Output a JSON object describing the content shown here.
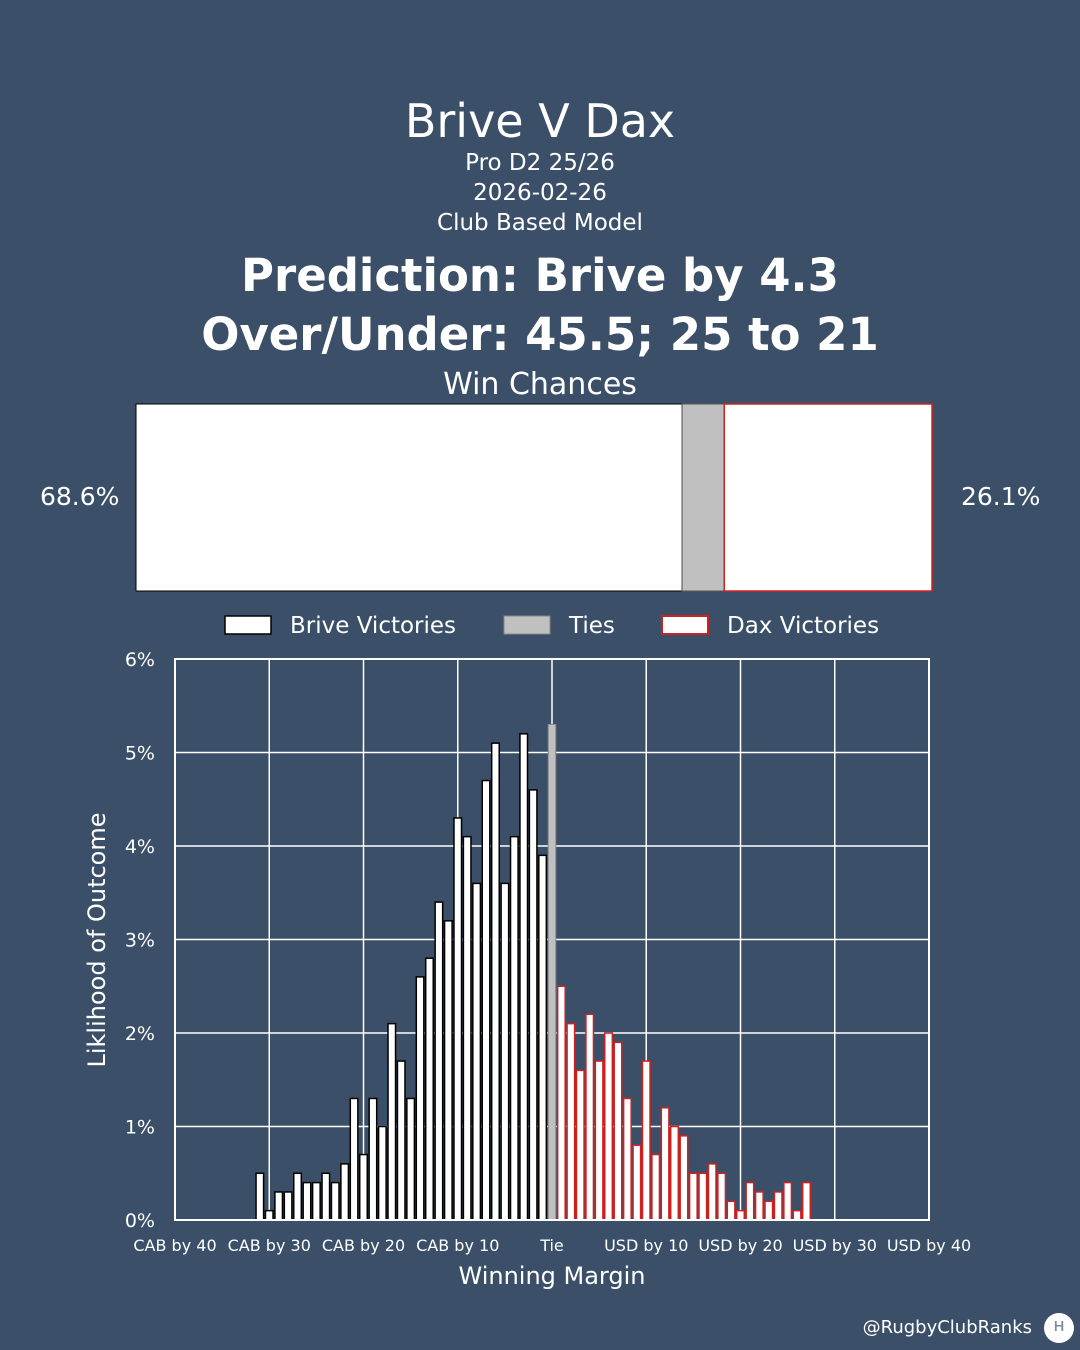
{
  "header": {
    "title": "Brive V Dax",
    "competition": "Pro D2 25/26",
    "date": "2026-02-26",
    "model": "Club Based Model",
    "prediction": "Prediction: Brive by 4.3",
    "over_under": "Over/Under: 45.5; 25 to 21"
  },
  "win_chances": {
    "title": "Win Chances",
    "home_pct": 68.6,
    "tie_pct": 5.3,
    "away_pct": 26.1,
    "home_label": "68.6%",
    "away_label": "26.1%"
  },
  "legend": {
    "home": "Brive Victories",
    "tie": "Ties",
    "away": "Dax Victories"
  },
  "colors": {
    "background": "#3b5068",
    "home_fill": "#ffffff",
    "home_edge": "#000000",
    "tie_fill": "#c0c0c0",
    "away_fill": "#ffffff",
    "away_edge": "#cc2222",
    "grid": "#ffffff"
  },
  "chart_data": {
    "type": "bar",
    "xlabel": "Winning Margin",
    "ylabel": "Liklihood of Outcome",
    "xlim": [
      -40,
      40
    ],
    "ylim": [
      0,
      6
    ],
    "yticks": [
      0,
      1,
      2,
      3,
      4,
      5,
      6
    ],
    "ytick_labels": [
      "0%",
      "1%",
      "2%",
      "3%",
      "4%",
      "5%",
      "6%"
    ],
    "xticks": [
      -40,
      -30,
      -20,
      -10,
      0,
      10,
      20,
      30,
      40
    ],
    "xtick_labels": [
      "CAB by 40",
      "CAB by 30",
      "CAB by 20",
      "CAB by 10",
      "Tie",
      "USD by 10",
      "USD by 20",
      "USD by 30",
      "USD by 40"
    ],
    "grid": true,
    "series": [
      {
        "name": "Brive Victories",
        "margin": [
          -31,
          -30,
          -29,
          -28,
          -27,
          -26,
          -25,
          -24,
          -23,
          -22,
          -21,
          -20,
          -19,
          -18,
          -17,
          -16,
          -15,
          -14,
          -13,
          -12,
          -11,
          -10,
          -9,
          -8,
          -7,
          -6,
          -5,
          -4,
          -3,
          -2,
          -1
        ],
        "values": [
          0.5,
          0.1,
          0.3,
          0.3,
          0.5,
          0.4,
          0.4,
          0.5,
          0.4,
          0.6,
          1.3,
          0.7,
          1.3,
          1.0,
          2.1,
          1.7,
          1.3,
          2.6,
          2.8,
          3.4,
          3.2,
          4.3,
          4.1,
          3.6,
          4.7,
          5.1,
          3.6,
          4.1,
          5.2,
          4.6,
          3.9
        ]
      },
      {
        "name": "Ties",
        "margin": [
          0
        ],
        "values": [
          5.3
        ]
      },
      {
        "name": "Dax Victories",
        "margin": [
          1,
          2,
          3,
          4,
          5,
          6,
          7,
          8,
          9,
          10,
          11,
          12,
          13,
          14,
          15,
          16,
          17,
          18,
          19,
          20,
          21,
          22,
          23,
          24,
          25,
          26,
          27
        ],
        "values": [
          2.5,
          2.1,
          1.6,
          2.2,
          1.7,
          2.0,
          1.9,
          1.3,
          0.8,
          1.7,
          0.7,
          1.2,
          1.0,
          0.9,
          0.5,
          0.5,
          0.6,
          0.5,
          0.2,
          0.1,
          0.4,
          0.3,
          0.2,
          0.3,
          0.4,
          0.1,
          0.4
        ]
      }
    ]
  },
  "footer": {
    "handle": "@RugbyClubRanks",
    "logo_glyph": "ʜ"
  }
}
